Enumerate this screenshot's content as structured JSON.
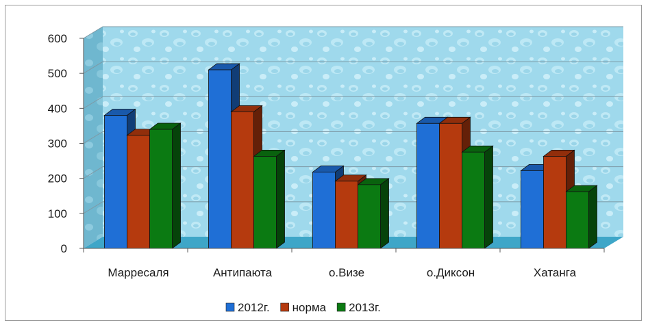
{
  "chart_data": {
    "type": "bar",
    "categories": [
      "Марресаля",
      "Антипаюта",
      "о.Визе",
      "о.Диксон",
      "Хатанга"
    ],
    "series": [
      {
        "name": "2012г.",
        "color": "#1f6fd6",
        "values": [
          380,
          510,
          218,
          357,
          222
        ]
      },
      {
        "name": "норма",
        "color": "#b53a0e",
        "values": [
          323,
          390,
          192,
          357,
          263
        ]
      },
      {
        "name": "2013г.",
        "color": "#0b7a12",
        "values": [
          340,
          263,
          182,
          275,
          162
        ]
      }
    ],
    "ylim": [
      0,
      600
    ],
    "yticks": [
      0,
      100,
      200,
      300,
      400,
      500,
      600
    ],
    "grid": true,
    "legend_position": "bottom",
    "title": "",
    "xlabel": "",
    "ylabel": ""
  }
}
